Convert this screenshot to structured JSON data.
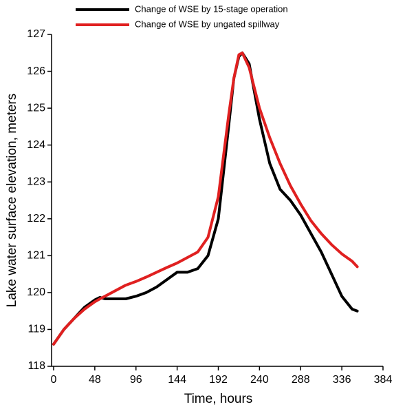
{
  "chart_data": {
    "type": "line",
    "x_label": "Time, hours",
    "y_label": "Lake water surface elevation, meters",
    "x": [
      0,
      12,
      24,
      36,
      48,
      54,
      60,
      72,
      84,
      96,
      108,
      120,
      132,
      144,
      156,
      168,
      180,
      192,
      204,
      210,
      216,
      220,
      228,
      240,
      252,
      264,
      276,
      288,
      300,
      312,
      324,
      336,
      348,
      354
    ],
    "series": [
      {
        "name": "Change of WSE by 15-stage operation",
        "color": "#000000",
        "values": [
          118.6,
          119.0,
          119.3,
          119.6,
          119.8,
          119.87,
          119.83,
          119.83,
          119.83,
          119.9,
          120.0,
          120.15,
          120.35,
          120.55,
          120.55,
          120.65,
          121.0,
          122.0,
          124.5,
          125.8,
          126.4,
          126.5,
          126.2,
          124.7,
          123.5,
          122.8,
          122.5,
          122.1,
          121.6,
          121.1,
          120.5,
          119.9,
          119.55,
          119.5
        ]
      },
      {
        "name": "Change of WSE by ungated spillway",
        "color": "#e02020",
        "values": [
          118.6,
          119.0,
          119.3,
          119.55,
          119.75,
          119.83,
          119.9,
          120.05,
          120.2,
          120.3,
          120.42,
          120.55,
          120.68,
          120.8,
          120.95,
          121.1,
          121.5,
          122.6,
          124.8,
          125.8,
          126.45,
          126.5,
          126.1,
          125.0,
          124.2,
          123.5,
          122.9,
          122.4,
          121.95,
          121.6,
          121.3,
          121.05,
          120.85,
          120.7
        ]
      }
    ],
    "xlim": [
      0,
      384
    ],
    "xticks": [
      0,
      48,
      96,
      144,
      192,
      240,
      288,
      336,
      384
    ],
    "ylim": [
      118,
      127
    ],
    "yticks": [
      118,
      119,
      120,
      121,
      122,
      123,
      124,
      125,
      126,
      127
    ],
    "grid": false,
    "legend": "top"
  }
}
